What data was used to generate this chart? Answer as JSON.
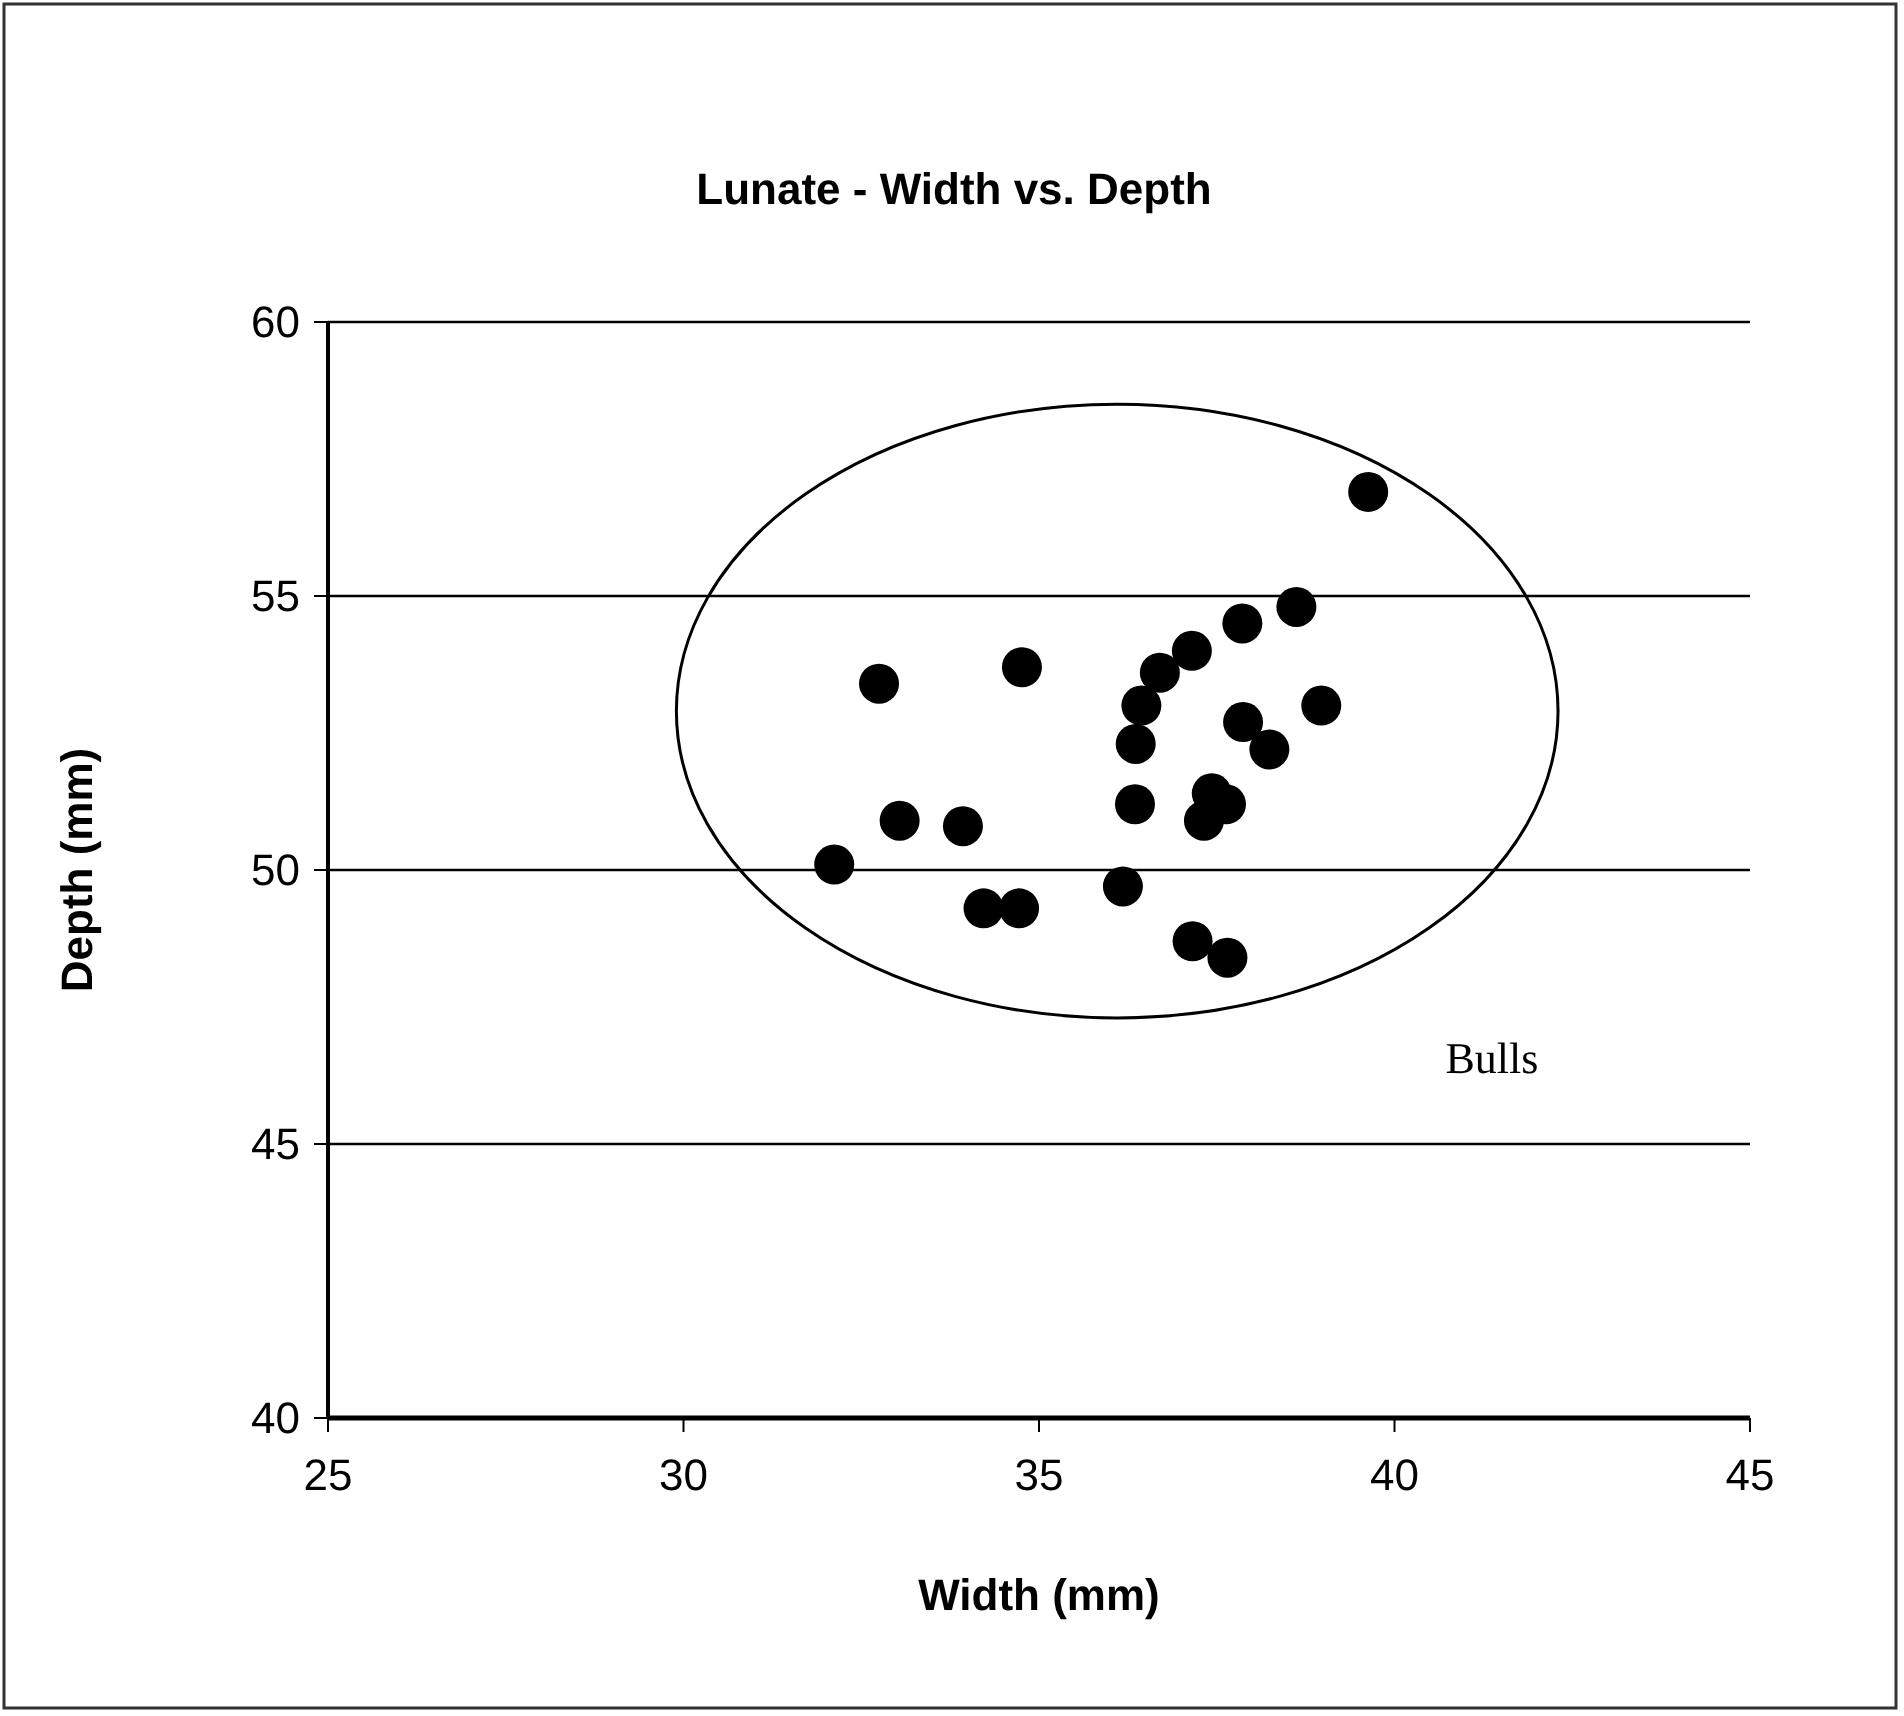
{
  "chart_data": {
    "type": "scatter",
    "title": "Lunate - Width vs. Depth",
    "xlabel": "Width (mm)",
    "ylabel": "Depth (mm)",
    "series": [
      {
        "color": "#000000",
        "x": [
          32.75,
          34.76,
          33.04,
          33.93,
          32.12,
          34.22,
          34.72,
          36.18,
          36.35,
          36.36,
          36.44,
          36.7,
          37.15,
          37.86,
          38.62,
          38.97,
          37.87,
          38.24,
          37.43,
          37.63,
          37.32,
          37.16,
          37.65,
          39.63
        ],
        "values": [
          53.4,
          53.7,
          50.9,
          50.8,
          50.1,
          49.3,
          49.3,
          49.7,
          51.2,
          52.3,
          53.0,
          53.6,
          54.0,
          54.5,
          54.8,
          53.0,
          52.7,
          52.2,
          51.4,
          51.2,
          50.9,
          48.7,
          48.4,
          56.9
        ]
      }
    ],
    "marker": "circle",
    "xlim": [
      25,
      45
    ],
    "xticks": [
      25,
      30,
      35,
      40,
      45
    ],
    "ylim": [
      40,
      60
    ],
    "yticks": [
      40,
      45,
      50,
      55,
      60
    ],
    "grid": "y",
    "annotations": [
      "Bulls"
    ]
  }
}
